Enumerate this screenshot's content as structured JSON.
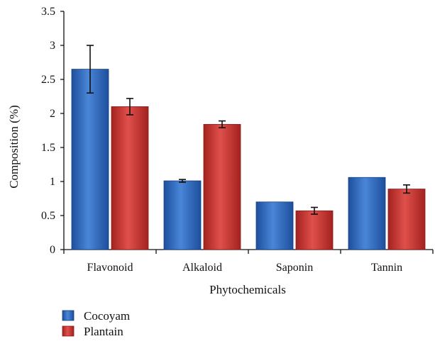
{
  "chart_data": {
    "type": "bar",
    "categories": [
      "Flavonoid",
      "Alkaloid",
      "Saponin",
      "Tannin"
    ],
    "series": [
      {
        "name": "Cocoyam",
        "values": [
          2.65,
          1.01,
          0.7,
          1.06
        ],
        "errors": [
          0.35,
          0.02,
          0.0,
          0.0
        ],
        "color": "#2f66b8"
      },
      {
        "name": "Plantain",
        "values": [
          2.1,
          1.84,
          0.57,
          0.89
        ],
        "errors": [
          0.12,
          0.05,
          0.05,
          0.06
        ],
        "color": "#c9302c"
      }
    ],
    "title": "",
    "xlabel": "Phytochemicals",
    "ylabel": "Composition (%)",
    "ylim": [
      0,
      3.5
    ],
    "yticks": [
      "0",
      "0.5",
      "1",
      "1.5",
      "2",
      "2.5",
      "3",
      "3.5"
    ],
    "grid": false,
    "legend": "bottom-left"
  }
}
